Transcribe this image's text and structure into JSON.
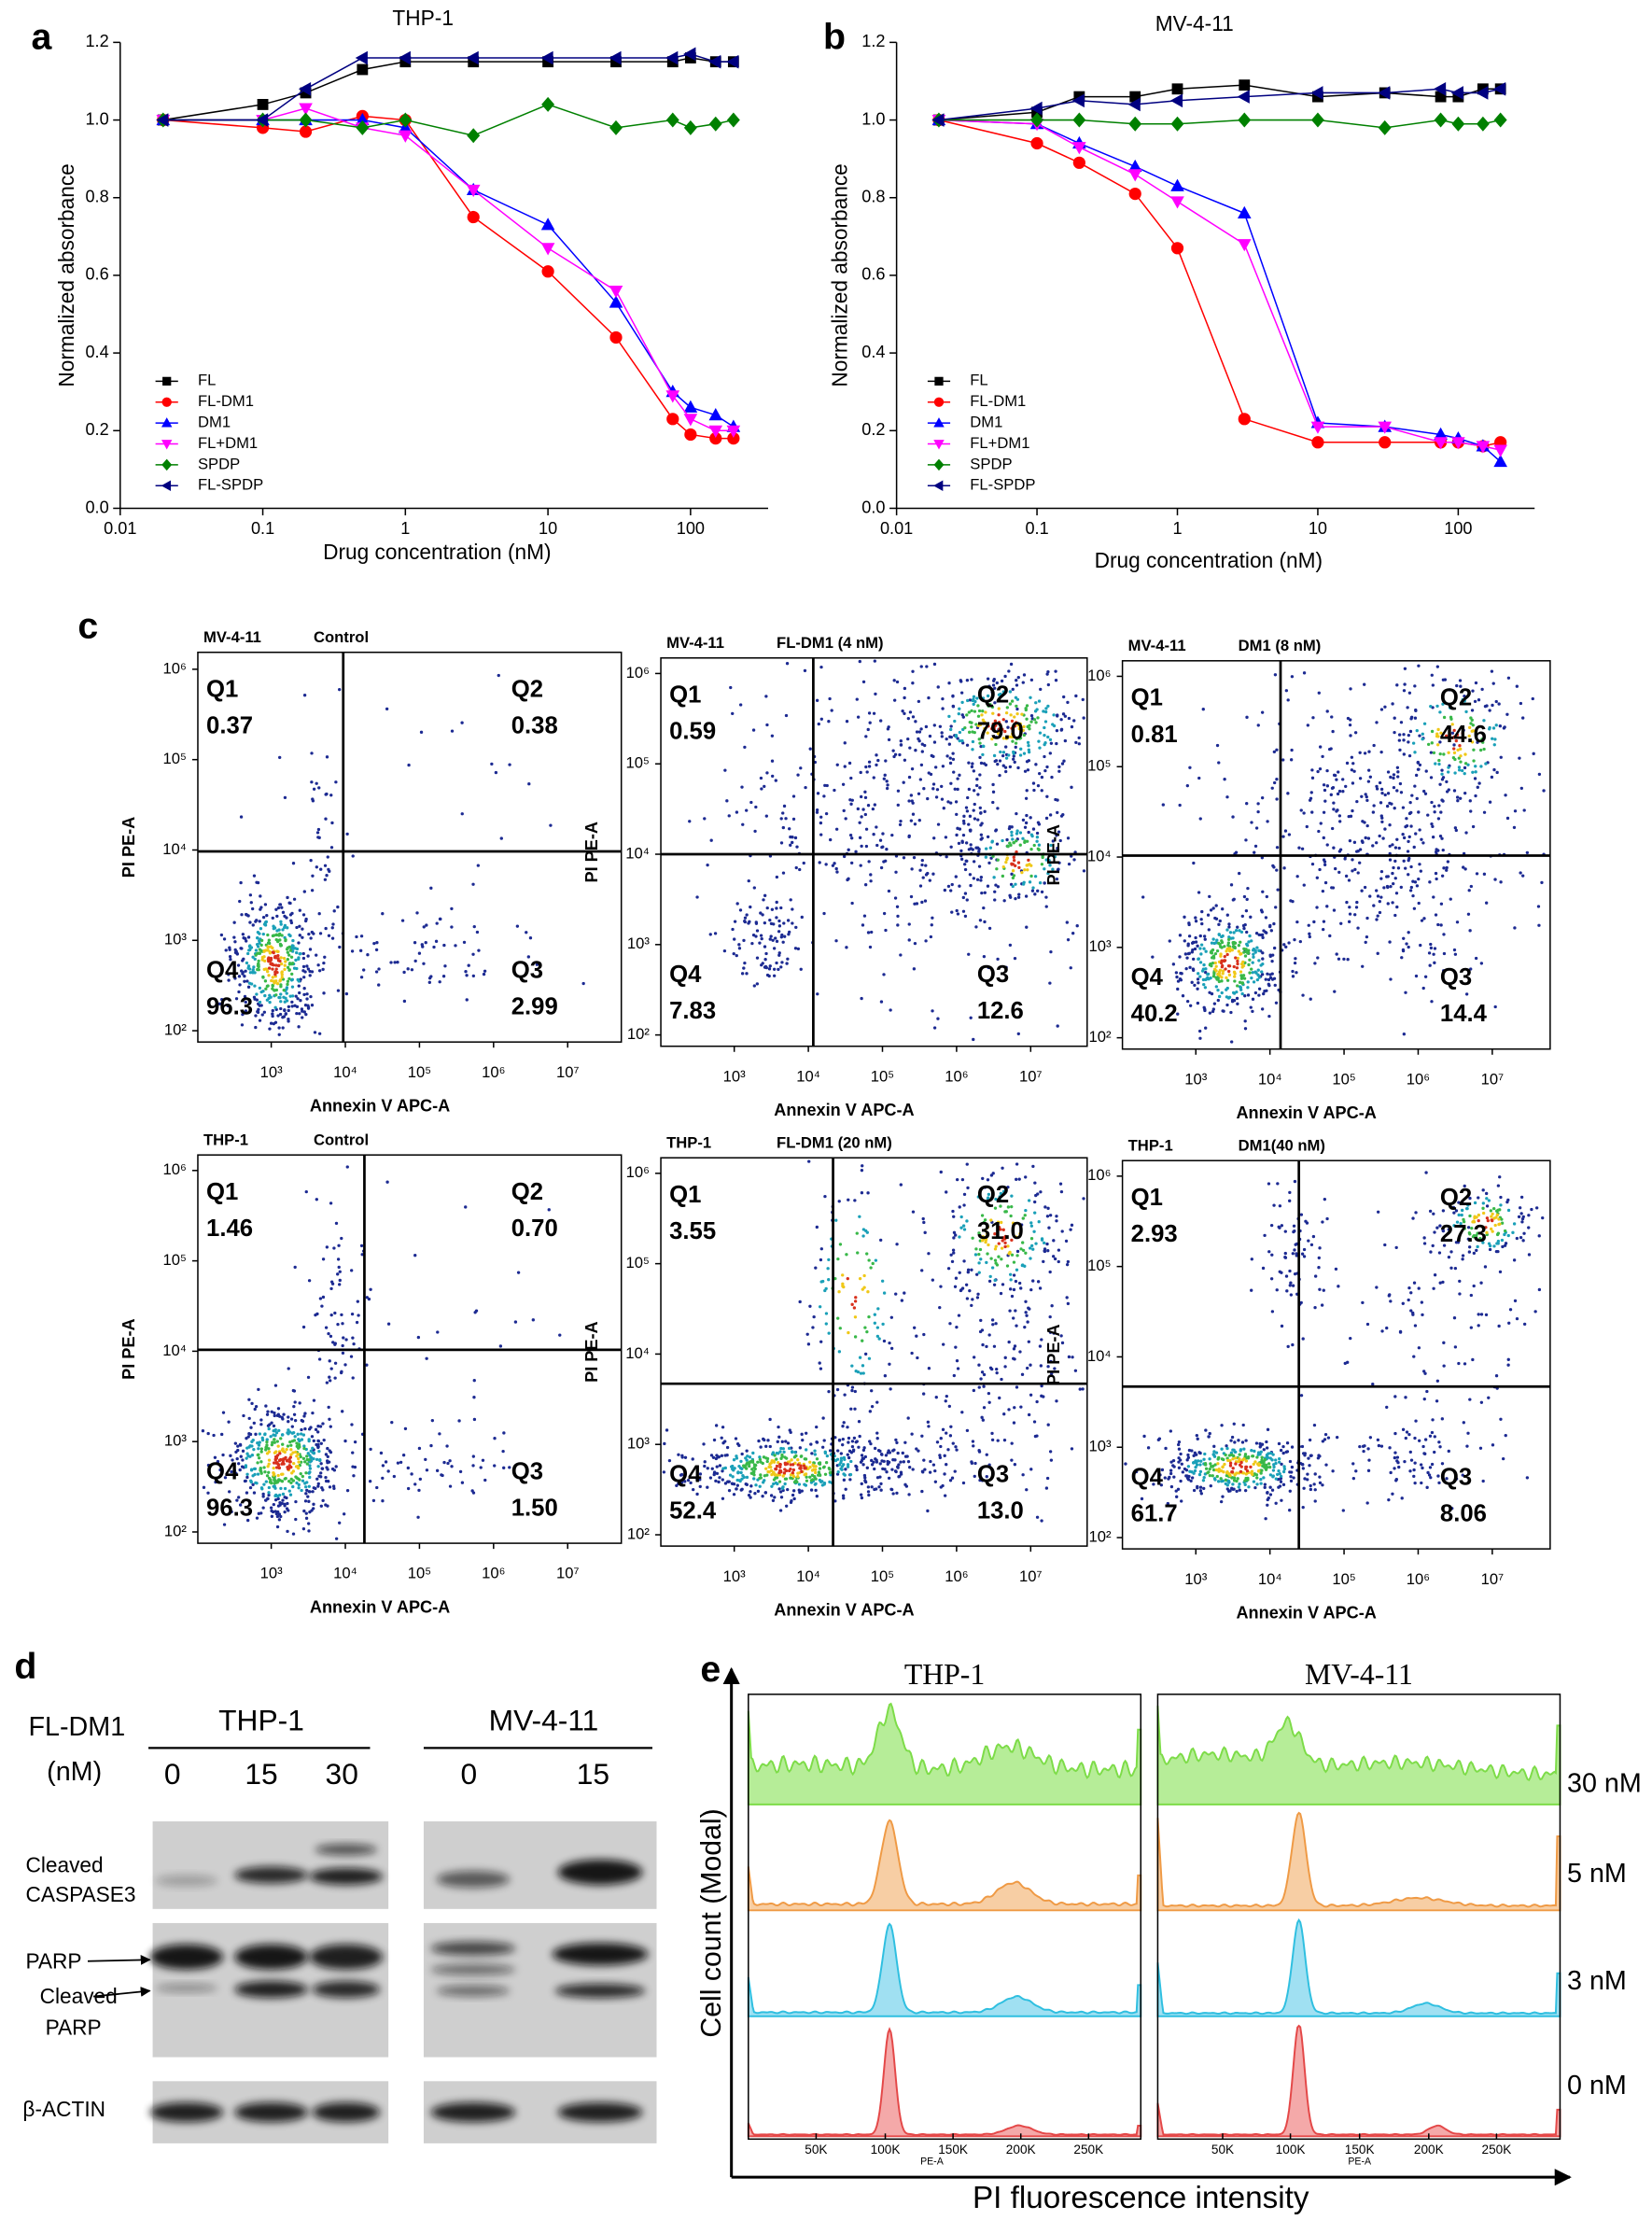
{
  "chart_data": [
    {
      "type": "line",
      "panel_label": "a",
      "title": "THP-1",
      "xlabel": "Drug concentration (nM)",
      "ylabel": "Normalized absorbance",
      "xscale": "log",
      "xlim": [
        0.01,
        350
      ],
      "xticks": [
        0.01,
        0.1,
        1,
        10,
        100
      ],
      "ylim": [
        0,
        1.2
      ],
      "yticks": [
        {
          "value": 0,
          "label": "0.0"
        },
        0.2,
        0.4,
        0.6,
        0.8,
        {
          "value": 1,
          "label": "1.0"
        },
        1.2
      ],
      "legend": "lower left",
      "x": [
        0.02,
        0.1,
        0.2,
        0.5,
        1,
        3,
        10,
        30,
        75,
        100,
        150,
        200
      ],
      "series": [
        {
          "name": "FL",
          "color": "#000000",
          "marker": "square",
          "values": [
            1.0,
            1.04,
            1.07,
            1.13,
            1.15,
            1.15,
            1.15,
            1.15,
            1.15,
            1.16,
            1.15,
            1.15
          ]
        },
        {
          "name": "FL-DM1",
          "color": "#ff0000",
          "marker": "circle",
          "values": [
            1.0,
            0.98,
            0.97,
            1.01,
            1.0,
            0.75,
            0.61,
            0.44,
            0.23,
            0.19,
            0.18,
            0.18
          ]
        },
        {
          "name": "DM1",
          "color": "#0000ff",
          "marker": "triangle-up",
          "values": [
            1.0,
            1.0,
            1.0,
            1.0,
            0.98,
            0.82,
            0.73,
            0.53,
            0.3,
            0.26,
            0.24,
            0.21
          ]
        },
        {
          "name": "FL+DM1",
          "color": "#ff00ff",
          "marker": "triangle-down",
          "values": [
            1.0,
            1.0,
            1.03,
            0.98,
            0.96,
            0.82,
            0.67,
            0.56,
            0.29,
            0.23,
            0.2,
            0.2
          ]
        },
        {
          "name": "SPDP",
          "color": "#008000",
          "marker": "diamond",
          "values": [
            1.0,
            1.0,
            1.0,
            0.98,
            1.0,
            0.96,
            1.04,
            0.98,
            1.0,
            0.98,
            0.99,
            1.0
          ]
        },
        {
          "name": "FL-SPDP",
          "color": "#000080",
          "marker": "triangle-left",
          "values": [
            1.0,
            1.0,
            1.08,
            1.16,
            1.16,
            1.16,
            1.16,
            1.16,
            1.16,
            1.17,
            1.15,
            1.15
          ]
        }
      ]
    },
    {
      "type": "line",
      "panel_label": "b",
      "title": "MV-4-11",
      "xlabel": "Drug concentration (nM)",
      "ylabel": "Normalized absorbance",
      "xscale": "log",
      "xlim": [
        0.01,
        350
      ],
      "xticks": [
        0.01,
        0.1,
        1,
        10,
        100
      ],
      "ylim": [
        0,
        1.2
      ],
      "yticks": [
        {
          "value": 0,
          "label": "0.0"
        },
        0.2,
        0.4,
        0.6,
        0.8,
        {
          "value": 1,
          "label": "1.0"
        },
        1.2
      ],
      "legend": "lower left",
      "x": [
        0.02,
        0.1,
        0.2,
        0.5,
        1,
        3,
        10,
        30,
        75,
        100,
        150,
        200
      ],
      "series": [
        {
          "name": "FL",
          "color": "#000000",
          "marker": "square",
          "values": [
            1.0,
            1.02,
            1.06,
            1.06,
            1.08,
            1.09,
            1.06,
            1.07,
            1.06,
            1.06,
            1.08,
            1.08
          ]
        },
        {
          "name": "FL-DM1",
          "color": "#ff0000",
          "marker": "circle",
          "values": [
            1.0,
            0.94,
            0.89,
            0.81,
            0.67,
            0.23,
            0.17,
            0.17,
            0.17,
            0.17,
            0.16,
            0.17
          ]
        },
        {
          "name": "DM1",
          "color": "#0000ff",
          "marker": "triangle-up",
          "values": [
            1.0,
            0.99,
            0.94,
            0.88,
            0.83,
            0.76,
            0.22,
            0.21,
            0.19,
            0.18,
            0.16,
            0.12
          ]
        },
        {
          "name": "FL+DM1",
          "color": "#ff00ff",
          "marker": "triangle-down",
          "values": [
            1.0,
            0.99,
            0.93,
            0.86,
            0.79,
            0.68,
            0.21,
            0.21,
            0.17,
            0.17,
            0.16,
            0.15
          ]
        },
        {
          "name": "SPDP",
          "color": "#008000",
          "marker": "diamond",
          "values": [
            1.0,
            1.0,
            1.0,
            0.99,
            0.99,
            1.0,
            1.0,
            0.98,
            1.0,
            0.99,
            0.99,
            1.0
          ]
        },
        {
          "name": "FL-SPDP",
          "color": "#000080",
          "marker": "triangle-left",
          "values": [
            1.0,
            1.03,
            1.05,
            1.04,
            1.05,
            1.06,
            1.07,
            1.07,
            1.08,
            1.07,
            1.07,
            1.08
          ]
        }
      ]
    }
  ],
  "flow_cytometry": {
    "panel_label": "c",
    "x_label": "Annexin V  APC-A",
    "y_label": "PI PE-A",
    "xticks": [
      {
        "value": 1000,
        "label": "10³"
      },
      {
        "value": 10000,
        "label": "10⁴"
      },
      {
        "value": 100000,
        "label": "10⁵"
      },
      {
        "value": 1000000,
        "label": "10⁶"
      },
      {
        "value": 10000000,
        "label": "10⁷"
      }
    ],
    "yticks": [
      {
        "value": 100,
        "label": "10²"
      },
      {
        "value": 1000,
        "label": "10³"
      },
      {
        "value": 10000,
        "label": "10⁴"
      },
      {
        "value": 100000,
        "label": "10⁵"
      },
      {
        "value": 1000000,
        "label": "10⁶"
      }
    ],
    "panels": [
      {
        "cell_line": "MV-4-11",
        "treatment": "Control",
        "quadrants": [
          {
            "label": "Q1",
            "value": "0.37"
          },
          {
            "label": "Q2",
            "value": "0.38"
          },
          {
            "label": "Q3",
            "value": "2.99"
          },
          {
            "label": "Q4",
            "value": "96.3"
          }
        ]
      },
      {
        "cell_line": "MV-4-11",
        "treatment": "FL-DM1 (4 nM)",
        "quadrants": [
          {
            "label": "Q1",
            "value": "0.59"
          },
          {
            "label": "Q2",
            "value": "79.0"
          },
          {
            "label": "Q3",
            "value": "12.6"
          },
          {
            "label": "Q4",
            "value": "7.83"
          }
        ]
      },
      {
        "cell_line": "MV-4-11",
        "treatment": "DM1 (8 nM)",
        "quadrants": [
          {
            "label": "Q1",
            "value": "0.81"
          },
          {
            "label": "Q2",
            "value": "44.6"
          },
          {
            "label": "Q3",
            "value": "14.4"
          },
          {
            "label": "Q4",
            "value": "40.2"
          }
        ]
      },
      {
        "cell_line": "THP-1",
        "treatment": "Control",
        "quadrants": [
          {
            "label": "Q1",
            "value": "1.46"
          },
          {
            "label": "Q2",
            "value": "0.70"
          },
          {
            "label": "Q3",
            "value": "1.50"
          },
          {
            "label": "Q4",
            "value": "96.3"
          }
        ]
      },
      {
        "cell_line": "THP-1",
        "treatment": "FL-DM1 (20 nM)",
        "quadrants": [
          {
            "label": "Q1",
            "value": "3.55"
          },
          {
            "label": "Q2",
            "value": "31.0"
          },
          {
            "label": "Q3",
            "value": "13.0"
          },
          {
            "label": "Q4",
            "value": "52.4"
          }
        ]
      },
      {
        "cell_line": "THP-1",
        "treatment": "DM1(40 nM)",
        "quadrants": [
          {
            "label": "Q1",
            "value": "2.93"
          },
          {
            "label": "Q2",
            "value": "27.3"
          },
          {
            "label": "Q3",
            "value": "8.06"
          },
          {
            "label": "Q4",
            "value": "61.7"
          }
        ]
      }
    ]
  },
  "western_blot": {
    "panel_label": "d",
    "treatment_label": "FL-DM1",
    "unit_label": "(nM)",
    "groups": [
      {
        "name": "THP-1",
        "lanes": [
          "0",
          "15",
          "30"
        ]
      },
      {
        "name": "MV-4-11",
        "lanes": [
          "0",
          "15"
        ]
      }
    ],
    "row_labels": [
      [
        "Cleaved",
        "CASPASE3"
      ],
      [
        "PARP"
      ],
      [
        "Cleaved",
        "PARP"
      ],
      [
        "β-ACTIN"
      ]
    ]
  },
  "cell_cycle": {
    "panel_label": "e",
    "titles": [
      "THP-1",
      "MV-4-11"
    ],
    "row_labels": [
      "30 nM",
      "5 nM",
      "3 nM",
      "0 nM"
    ],
    "xticks": [
      "50K",
      "100K",
      "150K",
      "200K",
      "250K"
    ],
    "x_channel": "PE-A",
    "x_label": "PI fluorescence intensity",
    "y_label": "Cell count (Modal)"
  }
}
